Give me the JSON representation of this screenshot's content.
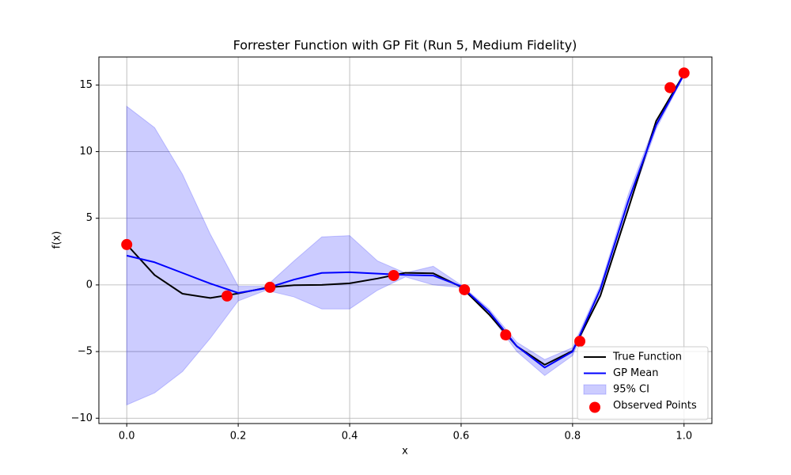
{
  "chart_data": {
    "type": "line",
    "title": "Forrester Function with GP Fit (Run 5, Medium Fidelity)",
    "x_label": "x",
    "y_label": "f(x)",
    "x": [
      0,
      0.05,
      0.1,
      0.15,
      0.2,
      0.25,
      0.3,
      0.35,
      0.4,
      0.45,
      0.5,
      0.55,
      0.6,
      0.65,
      0.7,
      0.75,
      0.8,
      0.85,
      0.9,
      0.95,
      1.0
    ],
    "series": [
      {
        "name": "True Function",
        "type": "line",
        "color": "#000000",
        "values": [
          3.03,
          0.74,
          -0.66,
          -0.98,
          -0.64,
          -0.21,
          -0.02,
          0.0,
          0.12,
          0.48,
          0.91,
          0.87,
          -0.15,
          -2.21,
          -4.61,
          -5.99,
          -4.95,
          -0.8,
          5.71,
          12.3,
          15.83
        ]
      },
      {
        "name": "GP Mean",
        "type": "line",
        "color": "#0000ff",
        "values": [
          2.2,
          1.7,
          0.9,
          0.1,
          -0.6,
          -0.25,
          0.4,
          0.9,
          0.95,
          0.85,
          0.75,
          0.7,
          -0.1,
          -2.0,
          -4.6,
          -6.2,
          -5.0,
          -0.3,
          6.3,
          12.0,
          15.8
        ]
      },
      {
        "name": "95% CI",
        "type": "band",
        "color": "#0000ff",
        "upper": [
          13.4,
          11.8,
          8.3,
          3.8,
          -0.1,
          -0.1,
          1.8,
          3.6,
          3.7,
          1.8,
          0.9,
          1.4,
          0.0,
          -1.8,
          -4.3,
          -5.6,
          -4.7,
          0.0,
          6.8,
          12.3,
          15.9
        ],
        "lower": [
          -9.0,
          -8.1,
          -6.5,
          -4.0,
          -1.2,
          -0.4,
          -0.9,
          -1.8,
          -1.8,
          -0.4,
          0.6,
          0.0,
          -0.2,
          -2.2,
          -5.0,
          -6.8,
          -5.3,
          -0.6,
          5.8,
          11.7,
          15.7
        ]
      },
      {
        "name": "Observed Points",
        "type": "scatter",
        "color": "#ff0000",
        "x": [
          0.0,
          0.18,
          0.257,
          0.479,
          0.606,
          0.68,
          0.813,
          0.975,
          1.0
        ],
        "values": [
          3.03,
          -0.83,
          -0.18,
          0.71,
          -0.36,
          -3.75,
          -4.23,
          14.8,
          15.9
        ]
      }
    ],
    "xlim": [
      -0.05,
      1.05
    ],
    "ylim": [
      -10.4,
      17.1
    ],
    "xticks": [
      {
        "value": 0,
        "label": "0.0"
      },
      {
        "value": 0.2,
        "label": "0.2"
      },
      {
        "value": 0.4,
        "label": "0.4"
      },
      {
        "value": 0.6,
        "label": "0.6"
      },
      {
        "value": 0.8,
        "label": "0.8"
      },
      {
        "value": 1.0,
        "label": "1.0"
      }
    ],
    "yticks": [
      {
        "value": -10,
        "label": "−10"
      },
      {
        "value": -5,
        "label": "−5"
      },
      0,
      5,
      10,
      15
    ],
    "grid": true,
    "legend": "lower right"
  }
}
